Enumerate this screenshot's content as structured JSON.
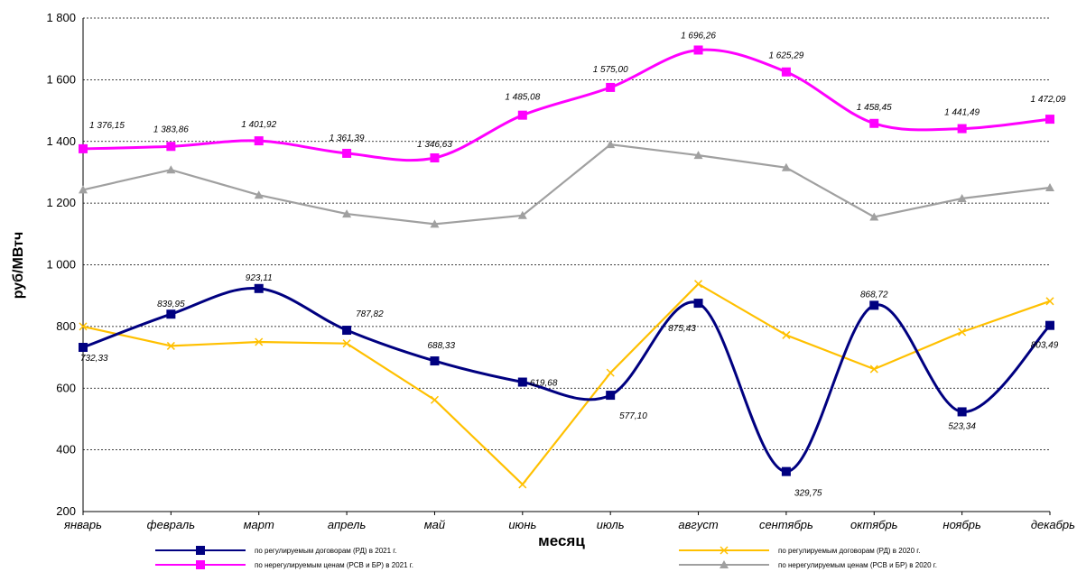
{
  "chart_data": {
    "type": "line",
    "xlabel": "месяц",
    "ylabel": "руб/МВтч",
    "ylim": [
      200,
      1800
    ],
    "yticks": [
      "200",
      "400",
      "600",
      "800",
      "1 000",
      "1 200",
      "1 400",
      "1 600",
      "1 800"
    ],
    "ytick_values": [
      200,
      400,
      600,
      800,
      1000,
      1200,
      1400,
      1600,
      1800
    ],
    "grid": true,
    "legend_position": "bottom",
    "categories": [
      "январь",
      "февраль",
      "март",
      "апрель",
      "май",
      "июнь",
      "июль",
      "август",
      "сентябрь",
      "октябрь",
      "ноябрь",
      "декабрь"
    ],
    "series": [
      {
        "name": "по регулируемым договорам (РД) в 2021 г.",
        "color": "#000080",
        "marker": "square",
        "smooth": true,
        "values": [
          732.33,
          839.95,
          923.11,
          787.82,
          688.33,
          619.68,
          577.1,
          875.43,
          329.75,
          868.72,
          523.34,
          803.49
        ],
        "labels": [
          "732,33",
          "839,95",
          "923,11",
          "787,82",
          "688,33",
          "619,68",
          "577,10",
          "875,43",
          "329,75",
          "868,72",
          "523,34",
          "803,49"
        ]
      },
      {
        "name": "по регулируемым договорам (РД) в 2020 г.",
        "color": "#FFC000",
        "marker": "x",
        "smooth": false,
        "values": [
          800,
          737,
          750,
          745,
          562,
          288,
          650,
          938,
          772,
          662,
          782,
          882
        ],
        "labels": []
      },
      {
        "name": "по нерегулируемым ценам (РСВ и БР) в 2021 г.",
        "color": "#FF00FF",
        "marker": "square",
        "smooth": true,
        "values": [
          1376.15,
          1383.86,
          1401.92,
          1361.39,
          1346.63,
          1485.08,
          1575.0,
          1696.26,
          1625.29,
          1458.45,
          1441.49,
          1472.09
        ],
        "labels": [
          "1 376,15",
          "1 383,86",
          "1 401,92",
          "1 361,39",
          "1 346,63",
          "1 485,08",
          "1 575,00",
          "1 696,26",
          "1 625,29",
          "1 458,45",
          "1 441,49",
          "1 472,09"
        ]
      },
      {
        "name": "по нерегулируемым ценам (РСВ и БР) в 2020 г.",
        "color": "#A0A0A0",
        "marker": "triangle",
        "smooth": false,
        "values": [
          1243,
          1308,
          1226,
          1165,
          1132,
          1160,
          1390,
          1355,
          1315,
          1155,
          1215,
          1250
        ],
        "labels": []
      }
    ]
  }
}
